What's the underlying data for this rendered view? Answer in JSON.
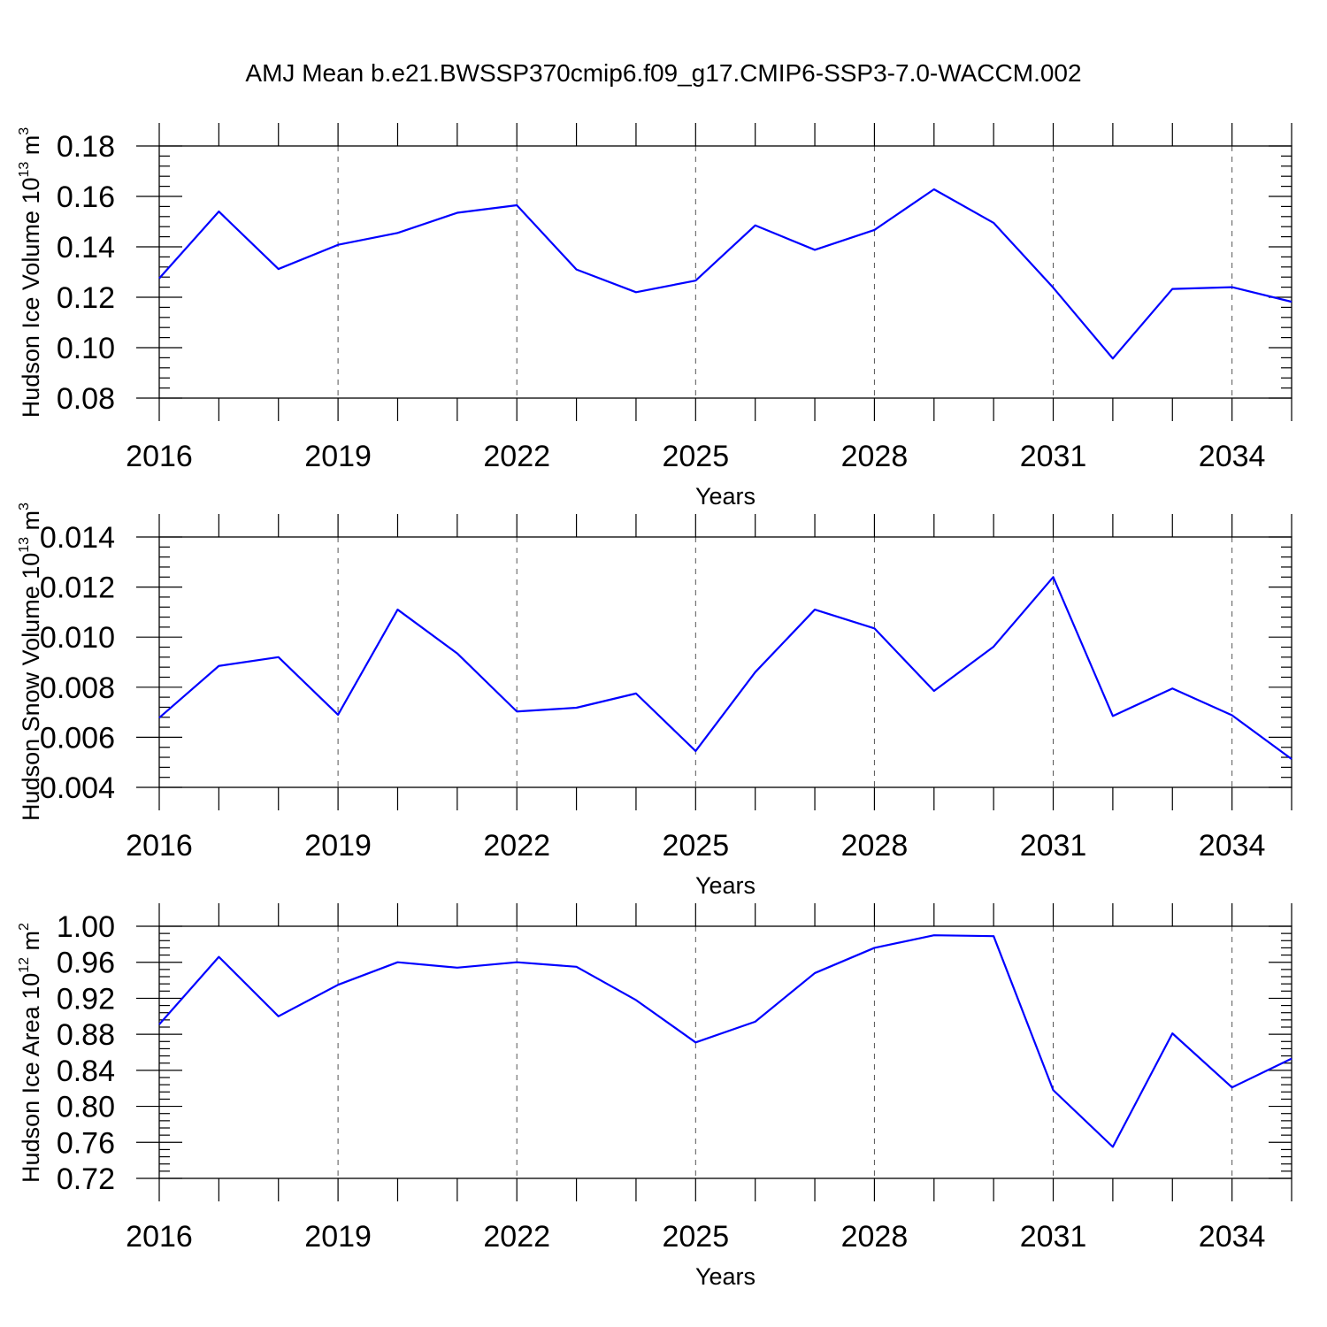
{
  "title": "AMJ Mean b.e21.BWSSP370cmip6.f09_g17.CMIP6-SSP3-7.0-WACCM.002",
  "colors": {
    "series": "#0000ff",
    "axes": "#000000",
    "grid": "#555555"
  },
  "chart_data": [
    {
      "type": "line",
      "ylabel": {
        "text": "Hudson Ice Volume 10",
        "sup1": "13",
        "unit": " m",
        "sup2": "3"
      },
      "xlabel": "Years",
      "xlim": [
        2016,
        2035
      ],
      "ylim": [
        0.08,
        0.18
      ],
      "xticks": [
        "2016",
        "2019",
        "2022",
        "2025",
        "2028",
        "2031",
        "2034"
      ],
      "yticks": [
        "0.08",
        "0.10",
        "0.12",
        "0.14",
        "0.16",
        "0.18"
      ],
      "x": [
        2016,
        2017,
        2018,
        2019,
        2020,
        2021,
        2022,
        2023,
        2024,
        2025,
        2026,
        2027,
        2028,
        2029,
        2030,
        2031,
        2032,
        2033,
        2034,
        2035
      ],
      "values": [
        0.1275,
        0.154,
        0.1312,
        0.1408,
        0.1455,
        0.1535,
        0.1565,
        0.131,
        0.122,
        0.1266,
        0.1485,
        0.1388,
        0.1467,
        0.1628,
        0.1495,
        0.1238,
        0.0957,
        0.1233,
        0.124,
        0.1182
      ],
      "grid": "dashed vertical at labeled years"
    },
    {
      "type": "line",
      "ylabel": {
        "text": "Hudson Snow Volume 10",
        "sup1": "13",
        "unit": " m",
        "sup2": "3"
      },
      "xlabel": "Years",
      "xlim": [
        2016,
        2035
      ],
      "ylim": [
        0.004,
        0.014
      ],
      "xticks": [
        "2016",
        "2019",
        "2022",
        "2025",
        "2028",
        "2031",
        "2034"
      ],
      "yticks": [
        "0.004",
        "0.006",
        "0.008",
        "0.010",
        "0.012",
        "0.014"
      ],
      "x": [
        2016,
        2017,
        2018,
        2019,
        2020,
        2021,
        2022,
        2023,
        2024,
        2025,
        2026,
        2027,
        2028,
        2029,
        2030,
        2031,
        2032,
        2033,
        2034,
        2035
      ],
      "values": [
        0.00678,
        0.00885,
        0.0092,
        0.0069,
        0.0111,
        0.00935,
        0.00703,
        0.00718,
        0.00775,
        0.00545,
        0.0086,
        0.0111,
        0.01035,
        0.00785,
        0.00962,
        0.0124,
        0.00685,
        0.00795,
        0.00688,
        0.00513
      ],
      "grid": "dashed vertical at labeled years"
    },
    {
      "type": "line",
      "ylabel": {
        "text": "Hudson Ice Area 10",
        "sup1": "12",
        "unit": " m",
        "sup2": "2"
      },
      "xlabel": "Years",
      "xlim": [
        2016,
        2035
      ],
      "ylim": [
        0.72,
        1.0
      ],
      "xticks": [
        "2016",
        "2019",
        "2022",
        "2025",
        "2028",
        "2031",
        "2034"
      ],
      "yticks": [
        "0.72",
        "0.76",
        "0.80",
        "0.84",
        "0.88",
        "0.92",
        "0.96",
        "1.00"
      ],
      "x": [
        2016,
        2017,
        2018,
        2019,
        2020,
        2021,
        2022,
        2023,
        2024,
        2025,
        2026,
        2027,
        2028,
        2029,
        2030,
        2031,
        2032,
        2033,
        2034,
        2035
      ],
      "values": [
        0.891,
        0.966,
        0.9,
        0.935,
        0.96,
        0.954,
        0.96,
        0.955,
        0.918,
        0.871,
        0.894,
        0.948,
        0.976,
        0.99,
        0.989,
        0.818,
        0.755,
        0.881,
        0.821,
        0.853
      ],
      "grid": "dashed vertical at labeled years"
    }
  ]
}
